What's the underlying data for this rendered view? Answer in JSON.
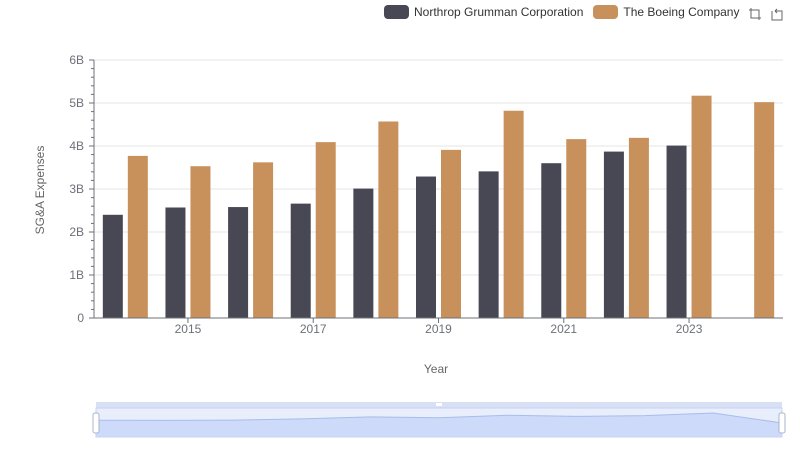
{
  "legend": {
    "items": [
      {
        "label": "Northrop Grumman Corporation",
        "color": "#484854"
      },
      {
        "label": "The Boeing Company",
        "color": "#c8915c"
      }
    ]
  },
  "toolbox": {
    "icons": [
      "zoom-icon",
      "restore-icon"
    ]
  },
  "chart_data": {
    "type": "bar",
    "categories": [
      "2014",
      "2015",
      "2016",
      "2017",
      "2018",
      "2019",
      "2020",
      "2021",
      "2022",
      "2023",
      "2024"
    ],
    "x_tick_labels": [
      "2015",
      "2017",
      "2019",
      "2021",
      "2023"
    ],
    "y_tick_labels": [
      "0",
      "1B",
      "2B",
      "3B",
      "4B",
      "5B",
      "6B"
    ],
    "series": [
      {
        "name": "Northrop Grumman Corporation",
        "color": "#484854",
        "values": [
          2.4,
          2.57,
          2.58,
          2.66,
          3.01,
          3.29,
          3.41,
          3.6,
          3.87,
          4.01,
          null
        ]
      },
      {
        "name": "The Boeing Company",
        "color": "#c8915c",
        "values": [
          3.77,
          3.53,
          3.62,
          4.09,
          4.57,
          3.91,
          4.82,
          4.16,
          4.19,
          5.17,
          5.02
        ]
      }
    ],
    "unit": "B",
    "xlabel": "Year",
    "ylabel": "SG&A Expenses",
    "ylim": [
      0,
      6
    ],
    "grid": true,
    "legend_position": "top-right",
    "datazoom": {
      "start": 0,
      "end": 100
    }
  }
}
